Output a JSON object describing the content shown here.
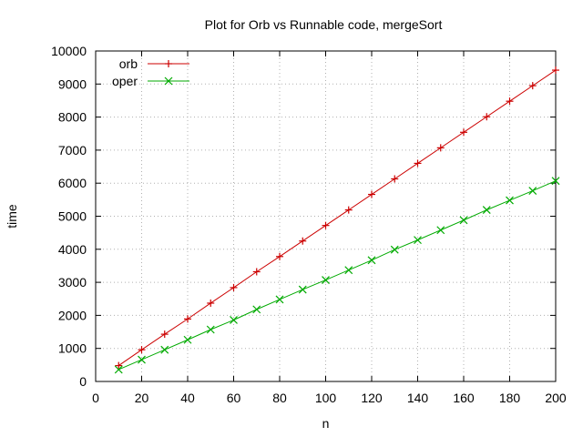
{
  "chart_data": {
    "type": "line",
    "title": "Plot for Orb vs Runnable code, mergeSort",
    "xlabel": "n",
    "ylabel": "time",
    "xlim": [
      0,
      200
    ],
    "ylim": [
      0,
      10000
    ],
    "x_ticks": [
      0,
      20,
      40,
      60,
      80,
      100,
      120,
      140,
      160,
      180,
      200
    ],
    "y_ticks": [
      0,
      1000,
      2000,
      3000,
      4000,
      5000,
      6000,
      7000,
      8000,
      9000,
      10000
    ],
    "grid": true,
    "legend_position": "top-left",
    "x": [
      10,
      20,
      30,
      40,
      50,
      60,
      70,
      80,
      90,
      100,
      110,
      120,
      130,
      140,
      150,
      160,
      170,
      180,
      190,
      200
    ],
    "series": [
      {
        "name": "orb",
        "color": "#cc0000",
        "marker": "plus",
        "values": [
          480,
          960,
          1430,
          1890,
          2370,
          2840,
          3320,
          3780,
          4250,
          4720,
          5190,
          5660,
          6130,
          6600,
          7070,
          7540,
          8010,
          8480,
          8950,
          9420
        ]
      },
      {
        "name": "oper",
        "color": "#00aa00",
        "marker": "cross",
        "values": [
          360,
          660,
          960,
          1260,
          1570,
          1860,
          2180,
          2480,
          2780,
          3070,
          3370,
          3670,
          3990,
          4280,
          4580,
          4880,
          5190,
          5480,
          5770,
          6070
        ]
      }
    ]
  }
}
